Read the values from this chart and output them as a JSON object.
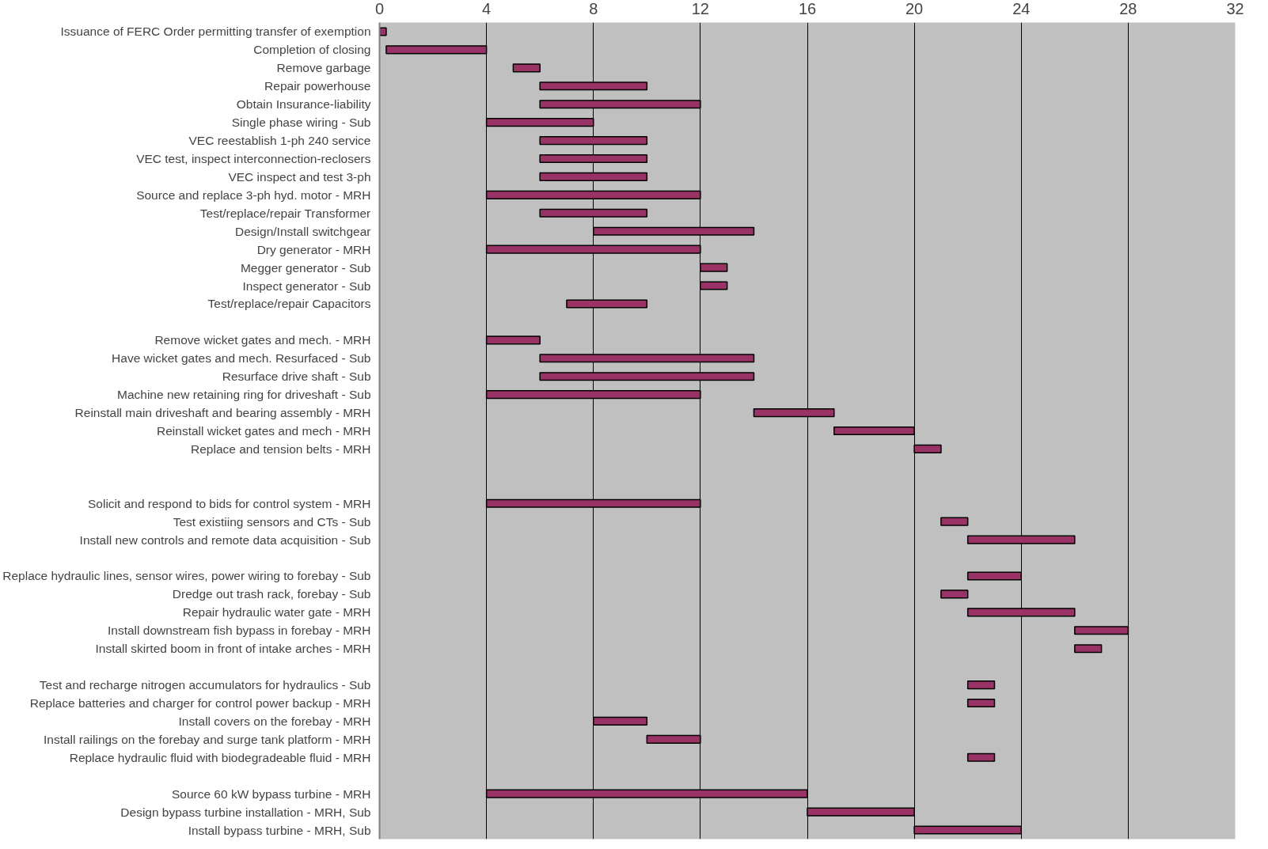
{
  "chart_data": {
    "type": "bar",
    "orientation": "horizontal",
    "color": "#993366",
    "xlim": [
      0,
      32
    ],
    "xticks": [
      0,
      4,
      8,
      12,
      16,
      20,
      24,
      28,
      32
    ],
    "grid": "x",
    "categories": [
      "Issuance of FERC Order permitting transfer of exemption",
      "Completion of closing",
      "Remove garbage",
      "Repair powerhouse",
      "Obtain Insurance-liability",
      "Single phase wiring - Sub",
      "VEC reestablish 1-ph 240 service",
      "VEC test, inspect interconnection-reclosers",
      "VEC inspect and test 3-ph",
      "Source and replace 3-ph hyd. motor - MRH",
      "Test/replace/repair Transformer",
      "Design/Install switchgear",
      "Dry generator - MRH",
      "Megger generator - Sub",
      "Inspect generator - Sub",
      "Test/replace/repair Capacitors",
      null,
      "Remove wicket gates and mech. - MRH",
      "Have wicket gates and mech. Resurfaced - Sub",
      "Resurface drive shaft - Sub",
      "Machine new retaining ring for driveshaft - Sub",
      "Reinstall main driveshaft and bearing assembly - MRH",
      "Reinstall wicket gates and mech - MRH",
      "Replace and tension belts - MRH",
      null,
      null,
      "Solicit and respond to bids for control system - MRH",
      "Test existiing sensors and CTs - Sub",
      "Install new controls and remote data acquisition - Sub",
      null,
      "Replace hydraulic lines, sensor wires, power wiring to forebay - Sub",
      "Dredge out trash rack, forebay - Sub",
      "Repair hydraulic water gate - MRH",
      "Install downstream fish bypass in forebay - MRH",
      "Install skirted boom in front of intake arches - MRH",
      null,
      "Test and recharge nitrogen accumulators for hydraulics - Sub",
      "Replace batteries and charger for control power backup - MRH",
      "Install covers on the forebay - MRH",
      "Install railings on the forebay and surge tank platform - MRH",
      "Replace hydraulic fluid with biodegradeable fluid - MRH",
      null,
      "Source 60 kW bypass turbine - MRH",
      "Design bypass turbine installation - MRH, Sub",
      "Install bypass turbine - MRH, Sub"
    ],
    "base": [
      0,
      0.25,
      5,
      6,
      6,
      4,
      6,
      6,
      6,
      4,
      6,
      8,
      4,
      12,
      12,
      7,
      null,
      4,
      6,
      6,
      4,
      14,
      17,
      20,
      null,
      null,
      4,
      21,
      22,
      null,
      22,
      21,
      22,
      26,
      26,
      null,
      22,
      22,
      8,
      10,
      22,
      null,
      4,
      16,
      20
    ],
    "values": [
      0.25,
      3.75,
      1,
      4,
      6,
      4,
      4,
      4,
      4,
      8,
      4,
      6,
      8,
      1,
      1,
      3,
      null,
      2,
      8,
      8,
      8,
      3,
      3,
      1,
      null,
      null,
      8,
      1,
      4,
      null,
      2,
      1,
      4,
      2,
      1,
      null,
      1,
      1,
      2,
      2,
      1,
      null,
      12,
      4,
      4
    ]
  }
}
